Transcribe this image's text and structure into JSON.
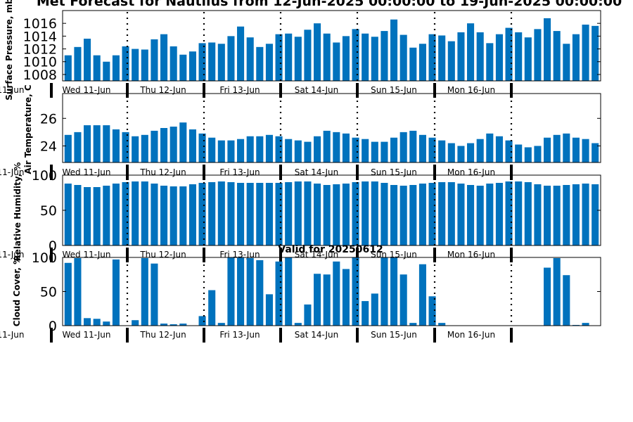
{
  "figure": {
    "title": "Met Forecast for Nautilus from 12-Jun-2025 00:00:00 to 19-Jun-2025 00:00:00",
    "bar_color": "#0072bd"
  },
  "chart_data": [
    {
      "type": "bar",
      "ylabel": "Surface Pressure, mb",
      "ylim": [
        1007,
        1018
      ],
      "yticks": [
        1008,
        1010,
        1012,
        1014,
        1016
      ],
      "grid": false,
      "day_labels": [
        "Wed 11-Jun",
        "Wed 11-Jun",
        "Thu 12-Jun",
        "Fri 13-Jun",
        "Sat 14-Jun",
        "Sun 15-Jun",
        "Mon 16-Jun"
      ],
      "values": [
        1011,
        1012.3,
        1013.6,
        1011,
        1010,
        1011,
        1012.4,
        1012,
        1011.9,
        1013.5,
        1014.3,
        1012.4,
        1011.1,
        1011.6,
        1012.9,
        1013,
        1012.8,
        1014,
        1015.5,
        1013.8,
        1012.3,
        1012.8,
        1014.3,
        1014.4,
        1013.9,
        1015,
        1016,
        1014.4,
        1013,
        1014,
        1015.1,
        1014.4,
        1013.9,
        1014.8,
        1016.6,
        1014.2,
        1012.2,
        1012.8,
        1014.3,
        1014.1,
        1013.2,
        1014.6,
        1016,
        1014.6,
        1012.9,
        1014.3,
        1015.3,
        1014.6,
        1013.8,
        1015.1,
        1016.8,
        1014.8,
        1012.8,
        1014.3,
        1015.8,
        1015.6
      ]
    },
    {
      "type": "bar",
      "ylabel": "Air Temperature, C",
      "ylim": [
        22.8,
        27.8
      ],
      "yticks": [
        24,
        26
      ],
      "grid": false,
      "day_labels": [
        "Wed 11-Jun",
        "Wed 11-Jun",
        "Thu 12-Jun",
        "Fri 13-Jun",
        "Sat 14-Jun",
        "Sun 15-Jun",
        "Mon 16-Jun"
      ],
      "values": [
        24.8,
        25,
        25.5,
        25.5,
        25.5,
        25.2,
        25,
        24.7,
        24.8,
        25.1,
        25.3,
        25.4,
        25.7,
        25.2,
        24.9,
        24.6,
        24.4,
        24.4,
        24.5,
        24.7,
        24.7,
        24.8,
        24.7,
        24.5,
        24.4,
        24.3,
        24.7,
        25.1,
        25,
        24.9,
        24.6,
        24.5,
        24.3,
        24.3,
        24.6,
        25,
        25.1,
        24.8,
        24.6,
        24.4,
        24.2,
        24,
        24.2,
        24.5,
        24.9,
        24.7,
        24.4,
        24.1,
        23.9,
        24,
        24.6,
        24.8,
        24.9,
        24.6,
        24.5,
        24.2
      ]
    },
    {
      "type": "bar",
      "ylabel": "Relative Humidity, %",
      "ylim": [
        0,
        100
      ],
      "yticks": [
        0,
        50,
        100
      ],
      "grid": false,
      "day_labels": [
        "Wed 11-Jun",
        "Wed 11-Jun",
        "Thu 12-Jun",
        "Fri 13-Jun",
        "Sat 14-Jun",
        "Sun 15-Jun",
        "Mon 16-Jun"
      ],
      "values": [
        88,
        86,
        83,
        83,
        85,
        88,
        90,
        91,
        91,
        88,
        85,
        84,
        84,
        87,
        89,
        90,
        91,
        90,
        89,
        89,
        89,
        89,
        89,
        90,
        91,
        91,
        88,
        86,
        87,
        88,
        90,
        91,
        91,
        89,
        86,
        85,
        86,
        88,
        89,
        90,
        90,
        88,
        86,
        85,
        88,
        89,
        91,
        91,
        90,
        87,
        85,
        85,
        86,
        87,
        88,
        87
      ]
    },
    {
      "type": "bar",
      "subtitle": "Valid for 20250612",
      "ylabel": "Cloud Cover, %",
      "ylim": [
        0,
        100
      ],
      "yticks": [
        0,
        50,
        100
      ],
      "grid": false,
      "day_labels": [
        "Wed 11-Jun",
        "Wed 11-Jun",
        "Thu 12-Jun",
        "Fri 13-Jun",
        "Sat 14-Jun",
        "Sun 15-Jun",
        "Mon 16-Jun"
      ],
      "values": [
        92,
        99,
        11,
        10,
        6,
        97,
        0,
        8,
        99,
        91,
        3,
        2,
        3,
        0,
        14,
        52,
        4,
        100,
        100,
        99,
        96,
        46,
        94,
        100,
        4,
        31,
        76,
        75,
        94,
        83,
        100,
        36,
        47,
        100,
        100,
        75,
        4,
        90,
        43,
        4,
        0,
        0,
        0,
        0,
        0,
        0,
        0,
        0,
        0,
        0,
        85,
        99,
        74,
        1,
        4,
        0
      ]
    }
  ]
}
